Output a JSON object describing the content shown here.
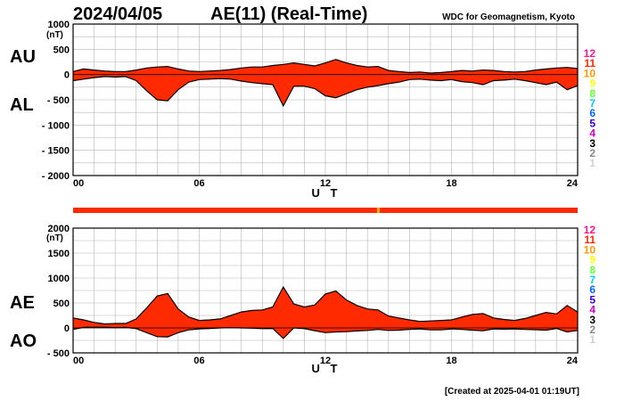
{
  "header": {
    "date": "2024/04/05",
    "title": "AE(11) (Real-Time)",
    "org": "WDC for Geomagnetism, Kyoto"
  },
  "footer": {
    "created": "[Created at 2025-04-01 01:19UT]"
  },
  "colors": {
    "fill": "#ff2a00",
    "outline": "#000000",
    "grid": "#b4b4b4",
    "marker": "#ffb000"
  },
  "chart_data": [
    {
      "type": "area",
      "id": "au-al",
      "side_labels": [
        "AU",
        "AL"
      ],
      "unit": "(nT)",
      "xlabel": "U T",
      "xticks": [
        0,
        6,
        12,
        18,
        24
      ],
      "xtick_labels": [
        "00",
        "06",
        "12",
        "18",
        "24"
      ],
      "xlim": [
        0,
        24
      ],
      "ylim": [
        -2000,
        1000
      ],
      "yticks": [
        1000,
        500,
        0,
        -500,
        -1000,
        -1500,
        -2000
      ],
      "ytick_labels": [
        "1000",
        "500",
        "0",
        "- 500",
        "- 1000",
        "- 1500",
        "- 2000"
      ],
      "grid": true,
      "series": [
        {
          "name": "AU",
          "x": [
            0,
            0.5,
            1,
            1.5,
            2,
            2.5,
            3,
            3.5,
            4,
            4.5,
            5,
            5.5,
            6,
            6.5,
            7,
            7.5,
            8,
            8.5,
            9,
            9.5,
            10,
            10.5,
            11,
            11.5,
            12,
            12.5,
            13,
            13.5,
            14,
            14.5,
            15,
            15.5,
            16,
            16.5,
            17,
            17.5,
            18,
            18.5,
            19,
            19.5,
            20,
            20.5,
            21,
            21.5,
            22,
            22.5,
            23,
            23.5,
            24
          ],
          "values": [
            60,
            110,
            90,
            70,
            60,
            60,
            90,
            130,
            150,
            160,
            110,
            70,
            60,
            70,
            80,
            100,
            130,
            150,
            150,
            180,
            200,
            230,
            200,
            170,
            230,
            300,
            230,
            180,
            150,
            160,
            80,
            60,
            40,
            50,
            30,
            40,
            60,
            80,
            70,
            90,
            80,
            60,
            50,
            60,
            90,
            110,
            130,
            140,
            120
          ]
        },
        {
          "name": "AL",
          "x": [
            0,
            0.5,
            1,
            1.5,
            2,
            2.5,
            3,
            3.5,
            4,
            4.5,
            5,
            5.5,
            6,
            6.5,
            7,
            7.5,
            8,
            8.5,
            9,
            9.5,
            10,
            10.5,
            11,
            11.5,
            12,
            12.5,
            13,
            13.5,
            14,
            14.5,
            15,
            15.5,
            16,
            16.5,
            17,
            17.5,
            18,
            18.5,
            19,
            19.5,
            20,
            20.5,
            21,
            21.5,
            22,
            22.5,
            23,
            23.5,
            24
          ],
          "values": [
            -120,
            -90,
            -60,
            -40,
            -50,
            -40,
            -120,
            -320,
            -500,
            -520,
            -300,
            -150,
            -100,
            -90,
            -80,
            -90,
            -130,
            -160,
            -180,
            -200,
            -620,
            -230,
            -230,
            -280,
            -420,
            -460,
            -380,
            -300,
            -250,
            -220,
            -180,
            -150,
            -100,
            -90,
            -110,
            -120,
            -100,
            -140,
            -160,
            -200,
            -120,
            -110,
            -90,
            -120,
            -160,
            -200,
            -150,
            -300,
            -220
          ]
        }
      ]
    },
    {
      "type": "area",
      "id": "ae-ao",
      "side_labels": [
        "AE",
        "AO"
      ],
      "unit": "(nT)",
      "xlabel": "U T",
      "xticks": [
        0,
        6,
        12,
        18,
        24
      ],
      "xtick_labels": [
        "00",
        "06",
        "12",
        "18",
        "24"
      ],
      "xlim": [
        0,
        24
      ],
      "ylim": [
        -500,
        2000
      ],
      "yticks": [
        2000,
        1500,
        1000,
        500,
        0,
        -500
      ],
      "ytick_labels": [
        "2000",
        "1500",
        "1000",
        "500",
        "0",
        "- 500"
      ],
      "grid": true,
      "series": [
        {
          "name": "AE",
          "x": [
            0,
            0.5,
            1,
            1.5,
            2,
            2.5,
            3,
            3.5,
            4,
            4.5,
            5,
            5.5,
            6,
            6.5,
            7,
            7.5,
            8,
            8.5,
            9,
            9.5,
            10,
            10.5,
            11,
            11.5,
            12,
            12.5,
            13,
            13.5,
            14,
            14.5,
            15,
            15.5,
            16,
            16.5,
            17,
            17.5,
            18,
            18.5,
            19,
            19.5,
            20,
            20.5,
            21,
            21.5,
            22,
            22.5,
            23,
            23.5,
            24
          ],
          "values": [
            200,
            160,
            110,
            80,
            90,
            90,
            180,
            400,
            640,
            690,
            380,
            220,
            150,
            160,
            180,
            250,
            320,
            350,
            360,
            420,
            820,
            480,
            420,
            460,
            680,
            740,
            560,
            450,
            380,
            360,
            240,
            200,
            160,
            130,
            140,
            150,
            160,
            220,
            270,
            290,
            200,
            170,
            150,
            190,
            250,
            310,
            280,
            450,
            320
          ]
        },
        {
          "name": "AO",
          "x": [
            0,
            0.5,
            1,
            1.5,
            2,
            2.5,
            3,
            3.5,
            4,
            4.5,
            5,
            5.5,
            6,
            6.5,
            7,
            7.5,
            8,
            8.5,
            9,
            9.5,
            10,
            10.5,
            11,
            11.5,
            12,
            12.5,
            13,
            13.5,
            14,
            14.5,
            15,
            15.5,
            16,
            16.5,
            17,
            17.5,
            18,
            18.5,
            19,
            19.5,
            20,
            20.5,
            21,
            21.5,
            22,
            22.5,
            23,
            23.5,
            24
          ],
          "values": [
            -30,
            10,
            15,
            15,
            5,
            10,
            -15,
            -95,
            -175,
            -180,
            -95,
            -40,
            -20,
            -10,
            0,
            5,
            0,
            -5,
            -15,
            -10,
            -210,
            0,
            -15,
            -55,
            -95,
            -80,
            -75,
            -60,
            -50,
            -30,
            -50,
            -45,
            -30,
            -20,
            -40,
            -40,
            -20,
            -30,
            -45,
            -55,
            -20,
            -25,
            -20,
            -30,
            -35,
            -45,
            -10,
            -80,
            -50
          ]
        }
      ]
    }
  ],
  "status_bar": {
    "color": "#ff2a00",
    "marker_hour": 14.5,
    "marker_color": "#ffb000"
  },
  "legend": {
    "items": [
      {
        "label": "12",
        "color": "#ff1493"
      },
      {
        "label": "11",
        "color": "#ff2a00"
      },
      {
        "label": "10",
        "color": "#ff9900"
      },
      {
        "label": "9",
        "color": "#ffff00"
      },
      {
        "label": "8",
        "color": "#66ff33"
      },
      {
        "label": "7",
        "color": "#00d0ff"
      },
      {
        "label": "6",
        "color": "#0066ff"
      },
      {
        "label": "5",
        "color": "#3300cc"
      },
      {
        "label": "4",
        "color": "#cc00cc"
      },
      {
        "label": "3",
        "color": "#000000"
      },
      {
        "label": "2",
        "color": "#888888"
      },
      {
        "label": "1",
        "color": "#d0d0d0"
      }
    ]
  }
}
